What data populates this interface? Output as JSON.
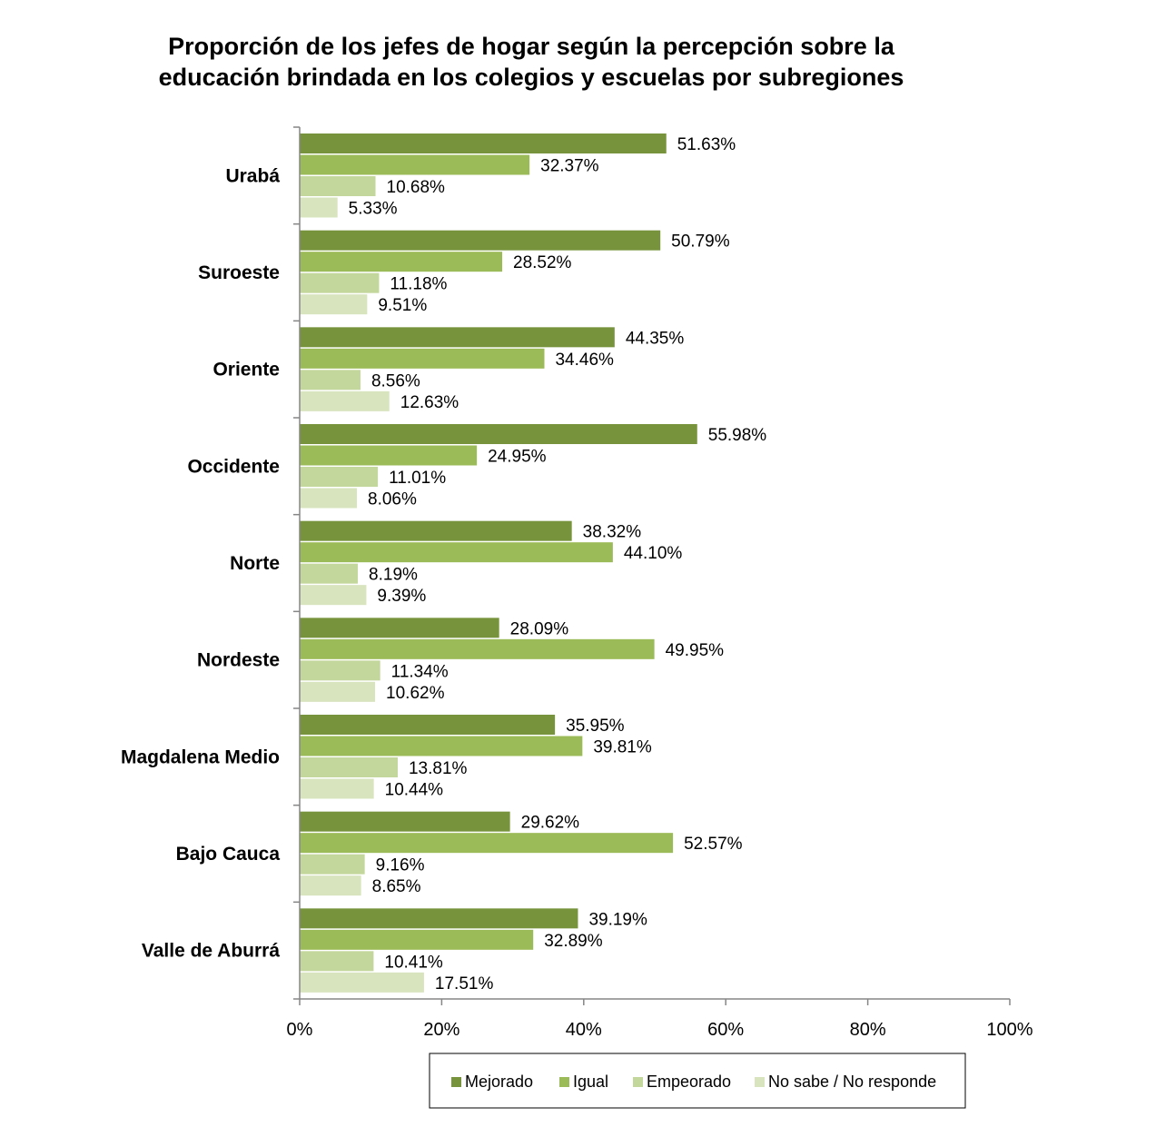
{
  "chart_data": {
    "type": "bar",
    "orientation": "horizontal",
    "title_lines": [
      "Proporción de los jefes de hogar según la percepción sobre la",
      "educación brindada en los colegios y escuelas por subregiones"
    ],
    "categories": [
      "Urabá",
      "Suroeste",
      "Oriente",
      "Occidente",
      "Norte",
      "Nordeste",
      "Magdalena Medio",
      "Bajo Cauca",
      "Valle de Aburrá"
    ],
    "series": [
      {
        "name": "Mejorado",
        "color": "#77933c",
        "values": [
          51.63,
          50.79,
          44.35,
          55.98,
          38.32,
          28.09,
          35.95,
          29.62,
          39.19
        ],
        "labels": [
          "51.63%",
          "50.79%",
          "44.35%",
          "55.98%",
          "38.32%",
          "28.09%",
          "35.95%",
          "29.62%",
          "39.19%"
        ]
      },
      {
        "name": "Igual",
        "color": "#9bbb59",
        "values": [
          32.37,
          28.52,
          34.46,
          24.95,
          44.1,
          49.95,
          39.81,
          52.57,
          32.89
        ],
        "labels": [
          "32.37%",
          "28.52%",
          "34.46%",
          "24.95%",
          "44.10%",
          "49.95%",
          "39.81%",
          "52.57%",
          "32.89%"
        ]
      },
      {
        "name": "Empeorado",
        "color": "#c3d69b",
        "values": [
          10.68,
          11.18,
          8.56,
          11.01,
          8.19,
          11.34,
          13.81,
          9.16,
          10.41
        ],
        "labels": [
          "10.68%",
          "11.18%",
          "8.56%",
          "11.01%",
          "8.19%",
          "11.34%",
          "13.81%",
          "9.16%",
          "10.41%"
        ]
      },
      {
        "name": "No sabe / No responde",
        "color": "#d7e4bd",
        "values": [
          5.33,
          9.51,
          12.63,
          8.06,
          9.39,
          10.62,
          10.44,
          8.65,
          17.51
        ],
        "labels": [
          "5.33%",
          "9.51%",
          "12.63%",
          "8.06%",
          "9.39%",
          "10.62%",
          "10.44%",
          "8.65%",
          "17.51%"
        ]
      }
    ],
    "xlim": [
      0,
      100
    ],
    "xticks": [
      0,
      20,
      40,
      60,
      80,
      100
    ],
    "xtick_labels": [
      "0%",
      "20%",
      "40%",
      "60%",
      "80%",
      "100%"
    ],
    "grid": false,
    "legend_position": "bottom"
  }
}
